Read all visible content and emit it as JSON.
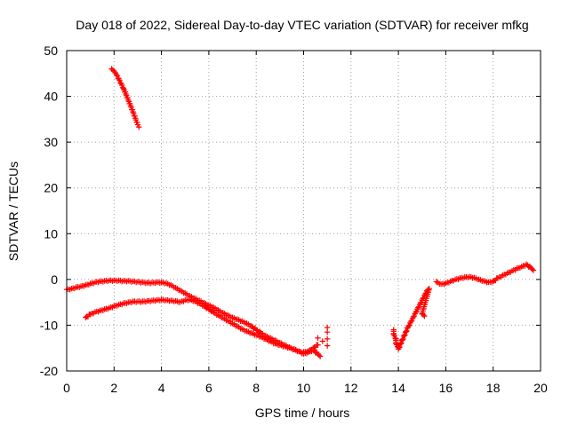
{
  "chart_data": {
    "type": "scatter",
    "title": "Day 018 of 2022, Sidereal Day-to-day VTEC variation (SDTVAR) for receiver mfkg",
    "xlabel": "GPS time / hours",
    "ylabel": "SDTVAR / TECUs",
    "xlim": [
      0,
      20
    ],
    "ylim": [
      -20,
      50
    ],
    "xticks": [
      "0",
      "2",
      "4",
      "6",
      "8",
      "10",
      "12",
      "14",
      "16",
      "18",
      "20"
    ],
    "yticks": [
      "-20",
      "-10",
      "0",
      "10",
      "20",
      "30",
      "40",
      "50"
    ],
    "xtick_values": [
      0,
      2,
      4,
      6,
      8,
      10,
      12,
      14,
      16,
      18,
      20
    ],
    "ytick_values": [
      -20,
      -10,
      0,
      10,
      20,
      30,
      40,
      50
    ],
    "grid": true,
    "marker": "+",
    "color": "#ff0000",
    "series": [
      {
        "name": "segment-early-high",
        "points": [
          [
            1.9,
            46
          ],
          [
            2.0,
            45.5
          ],
          [
            2.1,
            44.8
          ],
          [
            2.2,
            43.8
          ],
          [
            2.3,
            42.8
          ],
          [
            2.4,
            41.7
          ],
          [
            2.5,
            40.5
          ],
          [
            2.6,
            39.2
          ],
          [
            2.7,
            37.9
          ],
          [
            2.8,
            36.6
          ],
          [
            2.9,
            35.2
          ],
          [
            3.0,
            33.8
          ],
          [
            3.05,
            33.3
          ]
        ]
      },
      {
        "name": "segment-main-upper",
        "points": [
          [
            0.0,
            -2.2
          ],
          [
            0.2,
            -2.0
          ],
          [
            0.4,
            -1.7
          ],
          [
            0.6,
            -1.5
          ],
          [
            0.8,
            -1.2
          ],
          [
            1.0,
            -0.9
          ],
          [
            1.2,
            -0.6
          ],
          [
            1.4,
            -0.4
          ],
          [
            1.6,
            -0.3
          ],
          [
            1.8,
            -0.2
          ],
          [
            2.0,
            -0.2
          ],
          [
            2.2,
            -0.2
          ],
          [
            2.4,
            -0.3
          ],
          [
            2.6,
            -0.3
          ],
          [
            2.8,
            -0.4
          ],
          [
            3.0,
            -0.5
          ],
          [
            3.2,
            -0.6
          ],
          [
            3.4,
            -0.7
          ],
          [
            3.6,
            -0.7
          ],
          [
            3.8,
            -0.6
          ],
          [
            4.0,
            -0.6
          ],
          [
            4.2,
            -0.8
          ],
          [
            4.4,
            -1.2
          ],
          [
            4.6,
            -1.8
          ],
          [
            4.8,
            -2.4
          ],
          [
            5.0,
            -3.0
          ],
          [
            5.2,
            -3.6
          ],
          [
            5.4,
            -4.1
          ],
          [
            5.6,
            -4.6
          ],
          [
            5.8,
            -5.1
          ],
          [
            6.0,
            -5.6
          ],
          [
            6.2,
            -6.1
          ],
          [
            6.4,
            -6.7
          ],
          [
            6.6,
            -7.3
          ],
          [
            6.8,
            -7.8
          ],
          [
            7.0,
            -8.3
          ],
          [
            7.2,
            -8.7
          ],
          [
            7.4,
            -9.1
          ],
          [
            7.6,
            -9.6
          ],
          [
            7.8,
            -10.2
          ],
          [
            8.0,
            -11.0
          ],
          [
            8.2,
            -11.7
          ],
          [
            8.4,
            -12.3
          ],
          [
            8.6,
            -12.8
          ],
          [
            8.8,
            -13.3
          ],
          [
            9.0,
            -13.8
          ],
          [
            9.2,
            -14.3
          ],
          [
            9.4,
            -14.8
          ],
          [
            9.6,
            -15.3
          ],
          [
            9.8,
            -15.7
          ],
          [
            10.0,
            -15.9
          ],
          [
            10.2,
            -15.6
          ],
          [
            10.4,
            -15.0
          ],
          [
            10.6,
            -14.3
          ]
        ]
      },
      {
        "name": "segment-main-lower",
        "points": [
          [
            0.8,
            -8.3
          ],
          [
            1.0,
            -7.6
          ],
          [
            1.2,
            -7.1
          ],
          [
            1.4,
            -6.8
          ],
          [
            1.6,
            -6.5
          ],
          [
            1.8,
            -6.2
          ],
          [
            2.0,
            -5.8
          ],
          [
            2.2,
            -5.5
          ],
          [
            2.4,
            -5.2
          ],
          [
            2.6,
            -5.0
          ],
          [
            2.8,
            -4.8
          ],
          [
            3.0,
            -4.8
          ],
          [
            3.2,
            -4.8
          ],
          [
            3.4,
            -4.7
          ],
          [
            3.6,
            -4.6
          ],
          [
            3.8,
            -4.5
          ],
          [
            4.0,
            -4.4
          ],
          [
            4.2,
            -4.5
          ],
          [
            4.4,
            -4.6
          ],
          [
            4.6,
            -4.7
          ],
          [
            4.8,
            -4.9
          ],
          [
            5.0,
            -4.5
          ],
          [
            5.2,
            -4.4
          ],
          [
            5.4,
            -4.7
          ],
          [
            5.6,
            -5.2
          ],
          [
            5.8,
            -5.8
          ],
          [
            6.0,
            -6.5
          ],
          [
            6.2,
            -7.2
          ],
          [
            6.4,
            -7.8
          ],
          [
            6.6,
            -8.4
          ],
          [
            6.8,
            -9.0
          ],
          [
            7.0,
            -9.6
          ],
          [
            7.2,
            -10.2
          ],
          [
            7.4,
            -10.8
          ],
          [
            7.6,
            -11.3
          ],
          [
            7.8,
            -11.7
          ],
          [
            8.0,
            -12.1
          ],
          [
            8.2,
            -12.5
          ],
          [
            8.4,
            -13.0
          ],
          [
            8.6,
            -13.5
          ],
          [
            8.8,
            -14.0
          ],
          [
            9.0,
            -14.3
          ],
          [
            9.2,
            -14.6
          ],
          [
            9.4,
            -14.9
          ],
          [
            9.6,
            -15.2
          ],
          [
            9.8,
            -15.7
          ],
          [
            10.0,
            -16.2
          ],
          [
            10.2,
            -15.9
          ],
          [
            10.4,
            -15.4
          ],
          [
            10.6,
            -16.3
          ],
          [
            10.7,
            -16.8
          ]
        ]
      },
      {
        "name": "segment-outliers-11h",
        "points": [
          [
            11.0,
            -10.5
          ],
          [
            11.0,
            -11.5
          ],
          [
            11.0,
            -13.0
          ],
          [
            11.0,
            -14.5
          ],
          [
            10.8,
            -13.5
          ],
          [
            10.6,
            -12.8
          ]
        ]
      },
      {
        "name": "segment-14h-rise",
        "points": [
          [
            13.8,
            -11.0
          ],
          [
            13.8,
            -12.0
          ],
          [
            13.9,
            -13.0
          ],
          [
            13.9,
            -14.0
          ],
          [
            14.0,
            -14.8
          ],
          [
            14.0,
            -15.2
          ],
          [
            14.4,
            -10.5
          ],
          [
            14.5,
            -9.5
          ],
          [
            14.6,
            -8.5
          ],
          [
            14.7,
            -7.5
          ],
          [
            14.8,
            -6.5
          ],
          [
            14.9,
            -5.5
          ],
          [
            15.0,
            -4.5
          ],
          [
            15.1,
            -3.5
          ],
          [
            15.2,
            -2.5
          ],
          [
            15.3,
            -2.0
          ],
          [
            15.0,
            -7.5
          ],
          [
            15.1,
            -8.0
          ]
        ]
      },
      {
        "name": "segment-16h-plateau",
        "points": [
          [
            15.6,
            -0.5
          ],
          [
            15.8,
            -1.0
          ],
          [
            16.0,
            -0.8
          ],
          [
            16.2,
            -0.4
          ],
          [
            16.4,
            0.0
          ],
          [
            16.6,
            0.3
          ],
          [
            16.8,
            0.5
          ],
          [
            17.0,
            0.6
          ],
          [
            17.2,
            0.4
          ],
          [
            17.4,
            0.0
          ],
          [
            17.6,
            -0.3
          ],
          [
            17.8,
            -0.6
          ],
          [
            18.0,
            -0.4
          ],
          [
            18.2,
            0.3
          ],
          [
            18.4,
            0.9
          ],
          [
            18.6,
            1.4
          ],
          [
            18.8,
            1.9
          ],
          [
            19.0,
            2.4
          ],
          [
            19.2,
            2.8
          ],
          [
            19.4,
            3.3
          ],
          [
            19.6,
            2.5
          ],
          [
            19.7,
            2.0
          ]
        ]
      }
    ]
  }
}
